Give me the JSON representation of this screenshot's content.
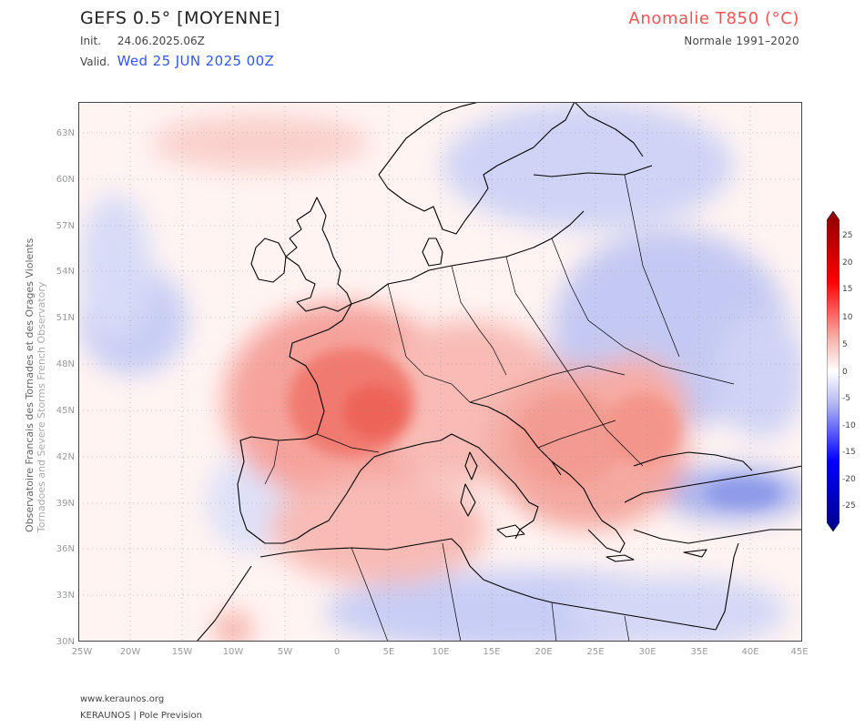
{
  "header": {
    "model": "GEFS 0.5° [MOYENNE]",
    "init_label": "Init.",
    "init_value": "24.06.2025.06Z",
    "valid_label": "Valid.",
    "valid_value": "Wed 25 JUN 2025 00Z",
    "field": "Anomalie T850 (°C)",
    "normal": "Normale 1991–2020"
  },
  "credits": {
    "line1": "Observatoire Francais des Tornades et des Orages Violents",
    "line2": "Tornadoes and Severe Storms French Observatory"
  },
  "axes": {
    "lat_labels": [
      "63N",
      "60N",
      "57N",
      "54N",
      "51N",
      "48N",
      "45N",
      "42N",
      "39N",
      "36N",
      "33N",
      "30N"
    ],
    "lon_labels": [
      "25W",
      "20W",
      "15W",
      "10W",
      "5W",
      "0",
      "5E",
      "10E",
      "15E",
      "20E",
      "25E",
      "30E",
      "35E",
      "40E",
      "45E"
    ]
  },
  "colorbar": {
    "labels": [
      "25",
      "20",
      "15",
      "10",
      "5",
      "0",
      "-5",
      "-10",
      "-15",
      "-20",
      "-25"
    ],
    "colors": {
      "max": "#8b0000",
      "warm": "#ff2222",
      "neutral": "#ffffff",
      "cool": "#6666ff",
      "min": "#00008b"
    }
  },
  "map": {
    "extent": {
      "lon_min": -25,
      "lon_max": 45,
      "lat_min": 30,
      "lat_max": 65
    },
    "anomalies": [
      {
        "region": "France",
        "value": 9
      },
      {
        "region": "Bay of Biscay",
        "value": 6
      },
      {
        "region": "Balkans",
        "value": 6
      },
      {
        "region": "Western Turkey",
        "value": 6
      },
      {
        "region": "Western Mediterranean",
        "value": 4
      },
      {
        "region": "Scandinavia",
        "value": -3
      },
      {
        "region": "Eastern Europe",
        "value": -4
      },
      {
        "region": "Eastern Turkey",
        "value": -6
      },
      {
        "region": "North Africa",
        "value": -3
      },
      {
        "region": "Atlantic off Iberia",
        "value": -3
      }
    ]
  },
  "footer": {
    "site": "www.keraunos.org",
    "org": "KERAUNOS | Pole Prevision"
  }
}
